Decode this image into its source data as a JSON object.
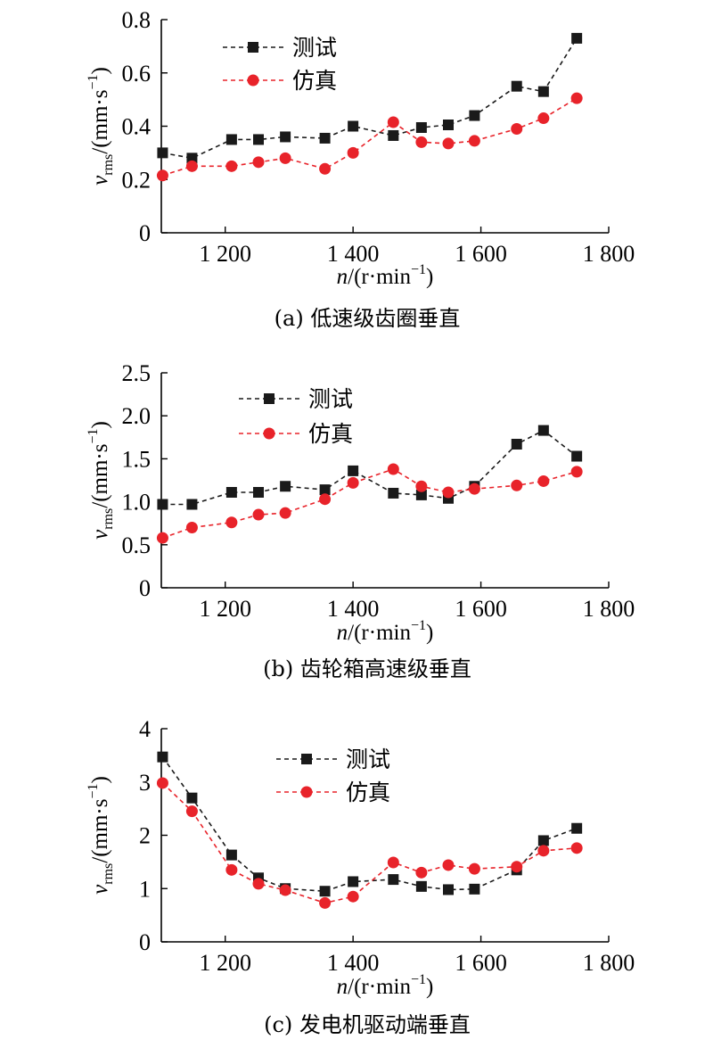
{
  "chart_data": [
    {
      "type": "line",
      "caption": "(a) 低速级齿圈垂直",
      "ylabel_var": "v",
      "ylabel_sub": "rms",
      "ylabel_unit": "/(mm·s",
      "ylabel_sup": "−1",
      "ylabel_close": ")",
      "xlabel_var": "n",
      "xlabel_unit": "/(r·min",
      "xlabel_sup": "−1",
      "xlabel_close": ")",
      "xlim": [
        1100,
        1800
      ],
      "ylim": [
        0,
        0.8
      ],
      "xticks": [
        1200,
        1400,
        1600,
        1800
      ],
      "xtick_labels": [
        "1 200",
        "1 400",
        "1 600",
        "1 800"
      ],
      "yticks": [
        0,
        0.2,
        0.4,
        0.6,
        0.8
      ],
      "ytick_labels": [
        "0",
        "0.2",
        "0.4",
        "0.6",
        "0.8"
      ],
      "legend_position": "top-left",
      "series": [
        {
          "name": "测试",
          "color": "#1a1a1a",
          "marker": "square",
          "x": [
            1102,
            1148,
            1210,
            1252,
            1294,
            1356,
            1400,
            1463,
            1507,
            1549,
            1590,
            1656,
            1698,
            1750
          ],
          "y": [
            0.3,
            0.28,
            0.35,
            0.35,
            0.36,
            0.355,
            0.4,
            0.365,
            0.395,
            0.405,
            0.44,
            0.55,
            0.53,
            0.73
          ]
        },
        {
          "name": "仿真",
          "color": "#e8232a",
          "marker": "circle",
          "x": [
            1102,
            1148,
            1210,
            1252,
            1294,
            1356,
            1400,
            1463,
            1507,
            1549,
            1590,
            1656,
            1698,
            1750
          ],
          "y": [
            0.215,
            0.25,
            0.25,
            0.265,
            0.28,
            0.24,
            0.3,
            0.415,
            0.34,
            0.335,
            0.345,
            0.39,
            0.43,
            0.505
          ]
        }
      ]
    },
    {
      "type": "line",
      "caption": "(b) 齿轮箱高速级垂直",
      "ylabel_var": "v",
      "ylabel_sub": "rms",
      "ylabel_unit": "/(mm·s",
      "ylabel_sup": "−1",
      "ylabel_close": ")",
      "xlabel_var": "n",
      "xlabel_unit": "/(r·min",
      "xlabel_sup": "−1",
      "xlabel_close": ")",
      "xlim": [
        1100,
        1800
      ],
      "ylim": [
        0,
        2.5
      ],
      "xticks": [
        1200,
        1400,
        1600,
        1800
      ],
      "xtick_labels": [
        "1 200",
        "1 400",
        "1 600",
        "1 800"
      ],
      "yticks": [
        0,
        0.5,
        1.0,
        1.5,
        2.0,
        2.5
      ],
      "ytick_labels": [
        "0",
        "0.5",
        "1.0",
        "1.5",
        "2.0",
        "2.5"
      ],
      "legend_position": "top-left",
      "series": [
        {
          "name": "测试",
          "color": "#1a1a1a",
          "marker": "square",
          "x": [
            1102,
            1148,
            1210,
            1252,
            1294,
            1356,
            1400,
            1463,
            1507,
            1549,
            1590,
            1656,
            1698,
            1750
          ],
          "y": [
            0.97,
            0.97,
            1.11,
            1.11,
            1.18,
            1.14,
            1.36,
            1.1,
            1.08,
            1.04,
            1.18,
            1.67,
            1.83,
            1.53
          ]
        },
        {
          "name": "仿真",
          "color": "#e8232a",
          "marker": "circle",
          "x": [
            1102,
            1148,
            1210,
            1252,
            1294,
            1356,
            1400,
            1463,
            1507,
            1549,
            1590,
            1656,
            1698,
            1750
          ],
          "y": [
            0.58,
            0.7,
            0.76,
            0.85,
            0.87,
            1.03,
            1.22,
            1.38,
            1.18,
            1.11,
            1.15,
            1.19,
            1.24,
            1.35
          ]
        }
      ]
    },
    {
      "type": "line",
      "caption": "(c) 发电机驱动端垂直",
      "ylabel_var": "v",
      "ylabel_sub": "rms",
      "ylabel_unit": "/(mm·s",
      "ylabel_sup": "−1",
      "ylabel_close": ")",
      "xlabel_var": "n",
      "xlabel_unit": "/(r·min",
      "xlabel_sup": "−1",
      "xlabel_close": ")",
      "xlim": [
        1100,
        1800
      ],
      "ylim": [
        0,
        4
      ],
      "xticks": [
        1200,
        1400,
        1600,
        1800
      ],
      "xtick_labels": [
        "1 200",
        "1 400",
        "1 600",
        "1 800"
      ],
      "yticks": [
        0,
        1,
        2,
        3,
        4
      ],
      "ytick_labels": [
        "0",
        "1",
        "2",
        "3",
        "4"
      ],
      "legend_position": "top-left",
      "series": [
        {
          "name": "测试",
          "color": "#1a1a1a",
          "marker": "square",
          "x": [
            1102,
            1148,
            1210,
            1252,
            1294,
            1356,
            1400,
            1463,
            1507,
            1549,
            1590,
            1656,
            1698,
            1750
          ],
          "y": [
            3.47,
            2.7,
            1.63,
            1.2,
            1.0,
            0.95,
            1.13,
            1.17,
            1.04,
            0.98,
            0.99,
            1.35,
            1.9,
            2.13
          ]
        },
        {
          "name": "仿真",
          "color": "#e8232a",
          "marker": "circle",
          "x": [
            1102,
            1148,
            1210,
            1252,
            1294,
            1356,
            1400,
            1463,
            1507,
            1549,
            1590,
            1656,
            1698,
            1750
          ],
          "y": [
            2.98,
            2.45,
            1.35,
            1.09,
            0.97,
            0.73,
            0.85,
            1.49,
            1.3,
            1.44,
            1.37,
            1.41,
            1.71,
            1.76
          ]
        }
      ]
    }
  ]
}
